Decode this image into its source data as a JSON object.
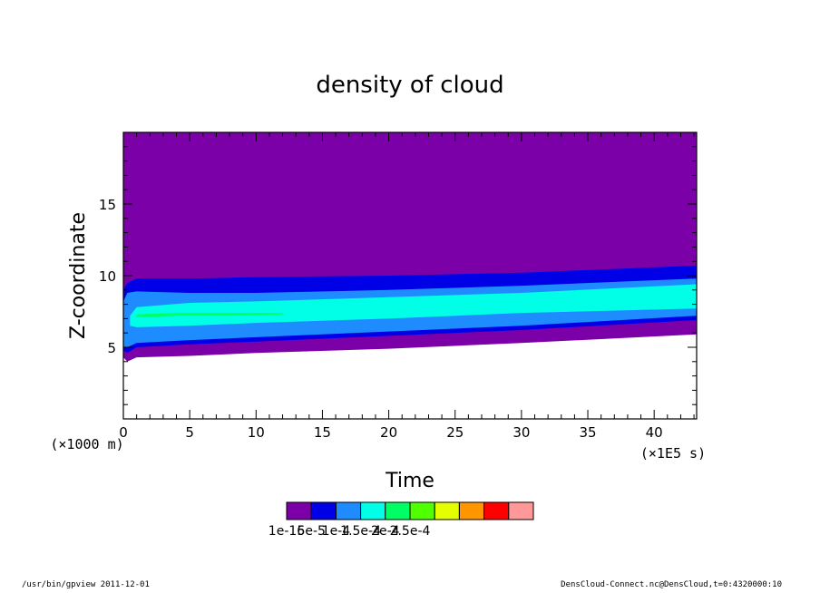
{
  "footer": {
    "left": "/usr/bin/gpview  2011-12-01",
    "right": "DensCloud-Connect.nc@DensCloud,t=0:4320000:10"
  },
  "chart_data": {
    "type": "heatmap",
    "title": "density of cloud",
    "xlabel": "Time",
    "ylabel": "Z-coordinate",
    "x_scale_label": "(×1E5 s)",
    "y_scale_label": "(×1000 m)",
    "xlim": [
      0,
      43.2
    ],
    "ylim": [
      0,
      20
    ],
    "x_ticks": [
      0,
      5,
      10,
      15,
      20,
      25,
      30,
      35,
      40
    ],
    "x_tick_labels": [
      "0",
      "5",
      "10",
      "15",
      "20",
      "25",
      "30",
      "35",
      "40"
    ],
    "y_ticks": [
      5,
      10,
      15
    ],
    "y_tick_labels": [
      "5",
      "10",
      "15"
    ],
    "colorbar": {
      "colors": [
        "#7b00a8",
        "#0000e6",
        "#1e8cff",
        "#00ffe6",
        "#00ff64",
        "#50ff00",
        "#e6ff00",
        "#ff9600",
        "#ff0000",
        "#ff9999"
      ],
      "labels": [
        "1e-16",
        "5e-5",
        "1e-4",
        "1.5e-4",
        "2e-4",
        "2.5e-4"
      ]
    },
    "bands": [
      {
        "level": 0,
        "x": [
          0,
          0.3,
          1,
          5,
          10,
          20,
          30,
          43.2
        ],
        "lower": [
          4.3,
          4.0,
          4.3,
          4.4,
          4.6,
          4.9,
          5.3,
          5.9
        ],
        "upper": [
          20,
          20,
          20,
          20,
          20,
          20,
          20,
          20
        ]
      },
      {
        "level": 1,
        "x": [
          0,
          0.3,
          1,
          5,
          10,
          20,
          30,
          43.2
        ],
        "lower": [
          4.8,
          4.6,
          5.0,
          5.2,
          5.4,
          5.8,
          6.2,
          6.9
        ],
        "upper": [
          9.0,
          9.5,
          9.8,
          9.8,
          9.9,
          10.0,
          10.2,
          10.7
        ]
      },
      {
        "level": 2,
        "x": [
          0,
          0.3,
          1,
          5,
          10,
          20,
          30,
          43.2
        ],
        "lower": [
          5.0,
          5.0,
          5.3,
          5.5,
          5.7,
          6.1,
          6.5,
          7.2
        ],
        "upper": [
          8.2,
          8.8,
          8.9,
          8.8,
          8.8,
          9.0,
          9.3,
          9.8
        ]
      },
      {
        "level": 3,
        "x": [
          0.5,
          1,
          5,
          10,
          20,
          30,
          43.2
        ],
        "lower": [
          6.5,
          6.4,
          6.5,
          6.7,
          7.0,
          7.4,
          7.7
        ],
        "upper": [
          7.2,
          7.8,
          8.1,
          8.2,
          8.5,
          8.8,
          9.4
        ]
      },
      {
        "level": 4,
        "x": [
          1,
          4,
          8,
          12
        ],
        "lower": [
          7.1,
          7.2,
          7.2,
          7.3
        ],
        "upper": [
          7.3,
          7.4,
          7.4,
          7.4
        ]
      }
    ]
  }
}
